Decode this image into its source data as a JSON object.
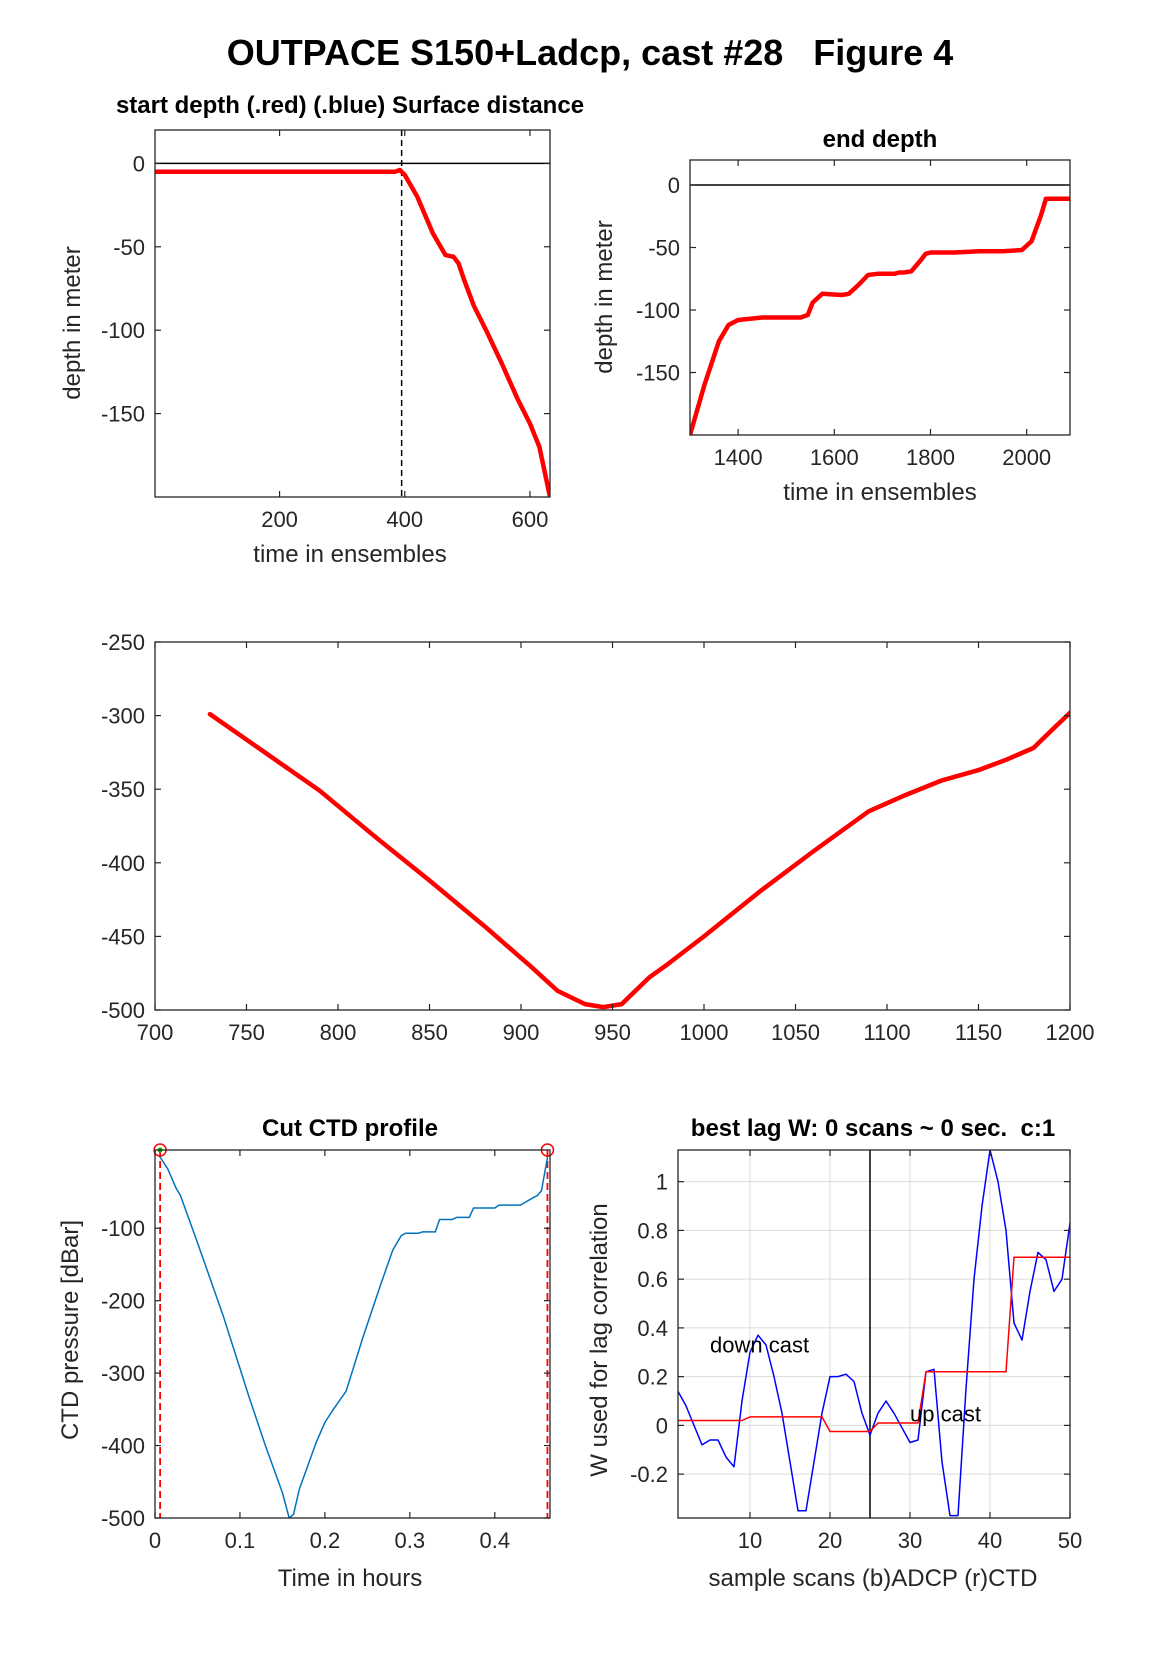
{
  "figure": {
    "title": "OUTPACE S150+Ladcp, cast #28   Figure 4"
  },
  "chart_data": [
    {
      "id": "p1",
      "type": "line",
      "title": "start depth (.red) (.blue) Surface distance",
      "xlabel": "time in ensembles",
      "ylabel": "depth in meter",
      "xlim": [
        1,
        632
      ],
      "ylim": [
        -200,
        20
      ],
      "xticks": [
        200,
        400,
        600
      ],
      "yticks": [
        0,
        -50,
        -100,
        -150
      ],
      "vline": 395,
      "hline": 0,
      "series": [
        {
          "color": "#ff0000",
          "x": [
            1,
            100,
            200,
            300,
            385,
            392,
            400,
            420,
            445,
            465,
            478,
            486,
            495,
            510,
            530,
            555,
            580,
            600,
            615,
            632
          ],
          "y": [
            -5,
            -5,
            -5,
            -5,
            -5,
            -4,
            -7,
            -20,
            -42,
            -55,
            -56,
            -60,
            -70,
            -85,
            -100,
            -120,
            -141,
            -156,
            -170,
            -200
          ]
        }
      ]
    },
    {
      "id": "p2",
      "type": "line",
      "title": "end depth",
      "xlabel": "time in ensembles",
      "ylabel": "depth in meter",
      "xlim": [
        1300,
        2090
      ],
      "ylim": [
        -200,
        20
      ],
      "xticks": [
        1400,
        1600,
        1800,
        2000
      ],
      "yticks": [
        0,
        -50,
        -100,
        -150
      ],
      "hline": 0,
      "series": [
        {
          "color": "#ff0000",
          "x": [
            1300,
            1330,
            1360,
            1380,
            1400,
            1425,
            1450,
            1500,
            1530,
            1545,
            1555,
            1575,
            1615,
            1630,
            1650,
            1670,
            1690,
            1720,
            1725,
            1735,
            1745,
            1760,
            1780,
            1790,
            1800,
            1850,
            1900,
            1950,
            1990,
            2010,
            2030,
            2040,
            2060,
            2090
          ],
          "y": [
            -200,
            -160,
            -125,
            -112,
            -108,
            -107,
            -106,
            -106,
            -106,
            -104,
            -94,
            -87,
            -88,
            -87,
            -80,
            -72,
            -71,
            -71,
            -71,
            -70,
            -70,
            -69,
            -60,
            -55,
            -54,
            -54,
            -53,
            -53,
            -52,
            -45,
            -24,
            -11,
            -11,
            -11
          ]
        }
      ]
    },
    {
      "id": "p3",
      "type": "line",
      "title": "",
      "xlabel": "",
      "ylabel": "",
      "xlim": [
        700,
        1200
      ],
      "ylim": [
        -500,
        -250
      ],
      "xticks": [
        700,
        750,
        800,
        850,
        900,
        950,
        1000,
        1050,
        1100,
        1150,
        1200
      ],
      "yticks": [
        -250,
        -300,
        -350,
        -400,
        -450,
        -500
      ],
      "series": [
        {
          "color": "#ff0000",
          "x": [
            730,
            760,
            790,
            820,
            850,
            880,
            905,
            920,
            935,
            945,
            955,
            960,
            970,
            980,
            1000,
            1030,
            1060,
            1090,
            1110,
            1130,
            1150,
            1165,
            1180,
            1190,
            1200
          ],
          "y": [
            -299,
            -325,
            -351,
            -382,
            -412,
            -443,
            -470,
            -487,
            -496,
            -498,
            -496,
            -490,
            -478,
            -469,
            -450,
            -420,
            -392,
            -365,
            -354,
            -344,
            -337,
            -330,
            -322,
            -310,
            -298
          ]
        }
      ]
    },
    {
      "id": "p4",
      "type": "line",
      "title": "Cut CTD profile",
      "xlabel": "Time in hours",
      "ylabel": "CTD pressure [dBar]",
      "xlim": [
        0,
        0.465
      ],
      "ylim": [
        -500,
        8
      ],
      "xticks": [
        0,
        0.1,
        0.2,
        0.3,
        0.4
      ],
      "xticklabels": [
        "0",
        "0.1",
        "0.2",
        "0.3",
        "0.4"
      ],
      "yticks": [
        -100,
        -200,
        -300,
        -400,
        -500
      ],
      "cut_start": 0.006,
      "cut_end": 0.462,
      "series": [
        {
          "color": "#0072bd",
          "x": [
            0.006,
            0.015,
            0.025,
            0.03,
            0.05,
            0.08,
            0.11,
            0.13,
            0.15,
            0.158,
            0.163,
            0.17,
            0.19,
            0.2,
            0.21,
            0.225,
            0.245,
            0.265,
            0.28,
            0.29,
            0.295,
            0.31,
            0.315,
            0.33,
            0.335,
            0.35,
            0.355,
            0.37,
            0.375,
            0.4,
            0.405,
            0.43,
            0.445,
            0.45,
            0.455,
            0.462
          ],
          "y": [
            -2,
            -18,
            -45,
            -55,
            -120,
            -220,
            -330,
            -400,
            -465,
            -500,
            -495,
            -460,
            -395,
            -368,
            -350,
            -325,
            -250,
            -180,
            -130,
            -110,
            -107,
            -107,
            -105,
            -105,
            -88,
            -88,
            -85,
            -85,
            -72,
            -72,
            -68,
            -68,
            -58,
            -55,
            -48,
            -2
          ]
        }
      ]
    },
    {
      "id": "p5",
      "type": "line",
      "title": "best lag W: 0 scans ~ 0 sec.  c:1",
      "xlabel": "sample scans (b)ADCP (r)CTD",
      "ylabel": "W used for lag correlation",
      "xlim": [
        1,
        50
      ],
      "ylim": [
        -0.38,
        1.13
      ],
      "xticks": [
        10,
        20,
        30,
        40,
        50
      ],
      "yticks": [
        1,
        0.8,
        0.6,
        0.4,
        0.2,
        0,
        -0.2
      ],
      "yticklabels": [
        "1",
        "0.8",
        "0.6",
        "0.4",
        "0.2",
        "0",
        "-0.2"
      ],
      "grid": true,
      "vline": 25,
      "annotations": [
        {
          "text": "down cast",
          "x": 5,
          "y": 0.3
        },
        {
          "text": "up cast",
          "x": 30,
          "y": 0.015
        }
      ],
      "series": [
        {
          "name": "ADCP",
          "color": "#0000ff",
          "x": [
            1,
            2,
            4,
            5,
            6,
            7,
            8,
            9,
            10,
            11,
            12,
            13,
            14,
            15,
            16,
            17,
            18,
            19,
            20,
            21,
            22,
            23,
            24,
            25,
            26,
            27,
            28,
            29,
            30,
            31,
            32,
            33,
            34,
            35,
            36,
            37,
            38,
            39,
            40,
            41,
            42,
            43,
            44,
            45,
            46,
            47,
            48,
            49,
            50
          ],
          "y": [
            0.14,
            0.08,
            -0.08,
            -0.06,
            -0.06,
            -0.13,
            -0.17,
            0.1,
            0.3,
            0.37,
            0.33,
            0.2,
            0.05,
            -0.15,
            -0.35,
            -0.35,
            -0.15,
            0.05,
            0.2,
            0.2,
            0.21,
            0.18,
            0.05,
            -0.04,
            0.05,
            0.1,
            0.05,
            -0.01,
            -0.07,
            -0.06,
            0.22,
            0.23,
            -0.15,
            -0.37,
            -0.37,
            0.15,
            0.6,
            0.9,
            1.13,
            1.0,
            0.8,
            0.42,
            0.35,
            0.55,
            0.71,
            0.68,
            0.55,
            0.6,
            0.83
          ]
        },
        {
          "name": "CTD",
          "color": "#ff0000",
          "x": [
            1,
            9,
            10,
            19,
            20,
            25,
            26,
            31,
            32,
            42,
            43,
            50
          ],
          "y": [
            0.02,
            0.02,
            0.035,
            0.035,
            -0.025,
            -0.025,
            0.01,
            0.01,
            0.22,
            0.22,
            0.69,
            0.69
          ]
        }
      ]
    }
  ]
}
